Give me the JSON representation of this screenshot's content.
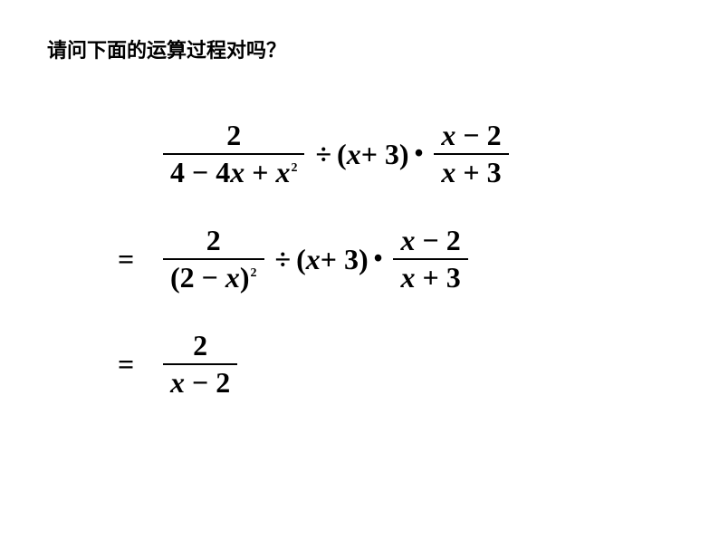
{
  "question": "请问下面的运算过程对吗？",
  "line1": {
    "frac1": {
      "num": "2",
      "den_prefix": "4 − 4",
      "den_var": "x",
      "den_plus": " + ",
      "den_var2": "x",
      "den_exp": "2"
    },
    "div": "÷",
    "paren_open": "(",
    "xplus3_x": "x",
    "xplus3_plus": " + 3",
    "paren_close": ")",
    "dot": "•",
    "frac2": {
      "num_x": "x",
      "num_rest": " − 2",
      "den_x": "x",
      "den_rest": " + 3"
    }
  },
  "line2": {
    "eq": "=",
    "frac1": {
      "num": "2",
      "den_open": "(2 − ",
      "den_x": "x",
      "den_close": ")",
      "den_exp": "2"
    },
    "div": "÷",
    "paren_open": "(",
    "xplus3_x": "x",
    "xplus3_plus": " + 3",
    "paren_close": ")",
    "dot": "•",
    "frac2": {
      "num_x": "x",
      "num_rest": " − 2",
      "den_x": "x",
      "den_rest": " + 3"
    }
  },
  "line3": {
    "eq": "=",
    "frac": {
      "num": "2",
      "den_x": "x",
      "den_rest": " − 2"
    }
  },
  "style": {
    "text_color": "#000000",
    "background": "#ffffff",
    "question_fontsize": 22,
    "math_fontsize": 32,
    "sup_fontsize": 14
  }
}
